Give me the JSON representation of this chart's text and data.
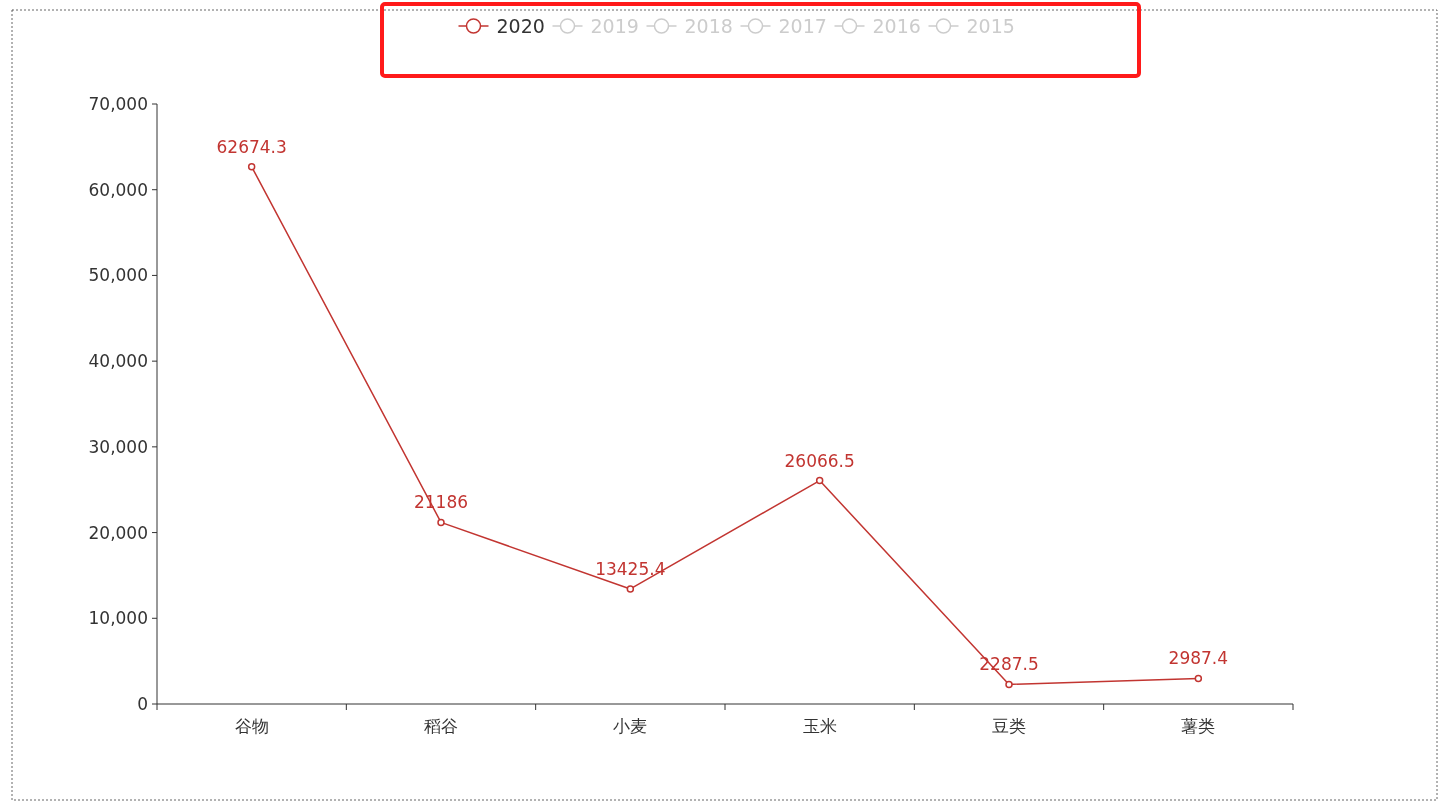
{
  "chart_data": {
    "type": "line",
    "categories": [
      "谷物",
      "稻谷",
      "小麦",
      "玉米",
      "豆类",
      "薯类"
    ],
    "series": [
      {
        "name": "2020",
        "color": "#c23531",
        "values": [
          62674.3,
          21186,
          13425.4,
          26066.5,
          2287.5,
          2987.4
        ]
      },
      {
        "name": "2019",
        "color": "#cccccc",
        "values": [
          null,
          null,
          null,
          null,
          null,
          null
        ]
      },
      {
        "name": "2018",
        "color": "#cccccc",
        "values": [
          null,
          null,
          null,
          null,
          null,
          null
        ]
      },
      {
        "name": "2017",
        "color": "#cccccc",
        "values": [
          null,
          null,
          null,
          null,
          null,
          null
        ]
      },
      {
        "name": "2016",
        "color": "#cccccc",
        "values": [
          null,
          null,
          null,
          null,
          null,
          null
        ]
      },
      {
        "name": "2015",
        "color": "#cccccc",
        "values": [
          null,
          null,
          null,
          null,
          null,
          null
        ]
      }
    ],
    "ylim": [
      0,
      70000
    ],
    "yticks": [
      0,
      {
        "value": 10000,
        "label": "10,000"
      },
      {
        "value": 20000,
        "label": "20,000"
      },
      {
        "value": 30000,
        "label": "30,000"
      },
      {
        "value": 40000,
        "label": "40,000"
      },
      {
        "value": 50000,
        "label": "50,000"
      },
      {
        "value": 60000,
        "label": "60,000"
      },
      {
        "value": 70000,
        "label": "70,000"
      }
    ],
    "data_labels": true,
    "legend": "top",
    "grid": false,
    "marker": "circle",
    "line_style": "solid"
  }
}
